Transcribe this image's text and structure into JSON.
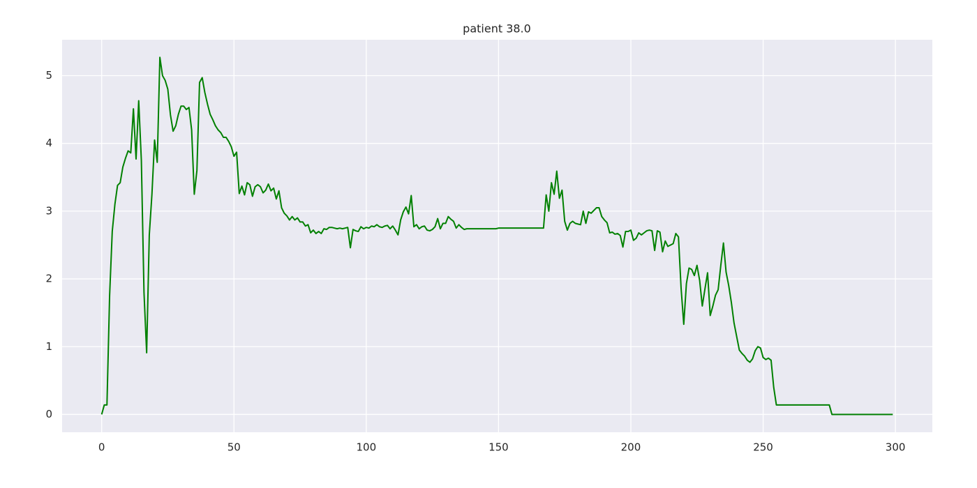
{
  "chart_data": {
    "type": "line",
    "title": "patient 38.0",
    "color": "#008000",
    "grid": true,
    "xlim": [
      -14.95,
      313.95
    ],
    "ylim": [
      -0.263,
      5.53
    ],
    "xticks": [
      0,
      50,
      100,
      150,
      200,
      250,
      300
    ],
    "yticks": [
      0,
      1,
      2,
      3,
      4,
      5
    ],
    "x": [
      0,
      1,
      2,
      3,
      4,
      5,
      6,
      7,
      8,
      9,
      10,
      11,
      12,
      13,
      14,
      15,
      16,
      17,
      18,
      19,
      20,
      21,
      22,
      23,
      24,
      25,
      26,
      27,
      28,
      29,
      30,
      31,
      32,
      33,
      34,
      35,
      36,
      37,
      38,
      39,
      40,
      41,
      42,
      43,
      44,
      45,
      46,
      47,
      48,
      49,
      50,
      51,
      52,
      53,
      54,
      55,
      56,
      57,
      58,
      59,
      60,
      61,
      62,
      63,
      64,
      65,
      66,
      67,
      68,
      69,
      70,
      71,
      72,
      73,
      74,
      75,
      76,
      77,
      78,
      79,
      80,
      81,
      82,
      83,
      84,
      85,
      86,
      87,
      88,
      89,
      90,
      91,
      92,
      93,
      94,
      95,
      96,
      97,
      98,
      99,
      100,
      101,
      102,
      103,
      104,
      105,
      106,
      107,
      108,
      109,
      110,
      111,
      112,
      113,
      114,
      115,
      116,
      117,
      118,
      119,
      120,
      121,
      122,
      123,
      124,
      125,
      126,
      127,
      128,
      129,
      130,
      131,
      132,
      133,
      134,
      135,
      136,
      137,
      138,
      139,
      140,
      141,
      142,
      143,
      144,
      145,
      146,
      147,
      148,
      149,
      150,
      151,
      152,
      153,
      154,
      155,
      156,
      157,
      158,
      159,
      160,
      161,
      162,
      163,
      164,
      165,
      166,
      167,
      168,
      169,
      170,
      171,
      172,
      173,
      174,
      175,
      176,
      177,
      178,
      179,
      180,
      181,
      182,
      183,
      184,
      185,
      186,
      187,
      188,
      189,
      190,
      191,
      192,
      193,
      194,
      195,
      196,
      197,
      198,
      199,
      200,
      201,
      202,
      203,
      204,
      205,
      206,
      207,
      208,
      209,
      210,
      211,
      212,
      213,
      214,
      215,
      216,
      217,
      218,
      219,
      220,
      221,
      222,
      223,
      224,
      225,
      226,
      227,
      228,
      229,
      230,
      231,
      232,
      233,
      234,
      235,
      236,
      237,
      238,
      239,
      240,
      241,
      242,
      243,
      244,
      245,
      246,
      247,
      248,
      249,
      250,
      251,
      252,
      253,
      254,
      255,
      256,
      257,
      258,
      259,
      260,
      261,
      262,
      263,
      264,
      265,
      266,
      267,
      268,
      269,
      270,
      271,
      272,
      273,
      274,
      275,
      276,
      277,
      278,
      279,
      280,
      281,
      282,
      283,
      284,
      285,
      286,
      287,
      288,
      289,
      290,
      291,
      292,
      293,
      294,
      295,
      296,
      297,
      298,
      299
    ],
    "values": [
      0,
      0.14,
      0.14,
      1.75,
      2.7,
      3.1,
      3.38,
      3.42,
      3.65,
      3.78,
      3.89,
      3.86,
      4.51,
      3.77,
      4.63,
      3.75,
      1.8,
      0.91,
      2.65,
      3.25,
      4.05,
      3.72,
      5.27,
      5.0,
      4.93,
      4.8,
      4.42,
      4.18,
      4.26,
      4.43,
      4.55,
      4.55,
      4.5,
      4.53,
      4.2,
      3.25,
      3.6,
      4.9,
      4.97,
      4.75,
      4.58,
      4.43,
      4.35,
      4.26,
      4.2,
      4.16,
      4.09,
      4.09,
      4.03,
      3.95,
      3.81,
      3.87,
      3.26,
      3.37,
      3.24,
      3.42,
      3.39,
      3.22,
      3.36,
      3.39,
      3.36,
      3.27,
      3.31,
      3.4,
      3.3,
      3.34,
      3.18,
      3.3,
      3.05,
      2.97,
      2.93,
      2.87,
      2.92,
      2.87,
      2.9,
      2.84,
      2.84,
      2.78,
      2.8,
      2.68,
      2.72,
      2.67,
      2.7,
      2.67,
      2.74,
      2.73,
      2.76,
      2.76,
      2.75,
      2.74,
      2.75,
      2.74,
      2.75,
      2.76,
      2.46,
      2.73,
      2.71,
      2.7,
      2.77,
      2.74,
      2.76,
      2.75,
      2.78,
      2.77,
      2.8,
      2.77,
      2.76,
      2.78,
      2.79,
      2.74,
      2.78,
      2.72,
      2.65,
      2.87,
      2.99,
      3.06,
      2.96,
      3.23,
      2.77,
      2.8,
      2.74,
      2.77,
      2.78,
      2.72,
      2.71,
      2.73,
      2.77,
      2.89,
      2.74,
      2.82,
      2.82,
      2.92,
      2.88,
      2.85,
      2.75,
      2.8,
      2.76,
      2.73,
      2.74,
      2.74,
      2.74,
      2.74,
      2.74,
      2.74,
      2.74,
      2.74,
      2.74,
      2.74,
      2.74,
      2.74,
      2.75,
      2.75,
      2.75,
      2.75,
      2.75,
      2.75,
      2.75,
      2.75,
      2.75,
      2.75,
      2.75,
      2.75,
      2.75,
      2.75,
      2.75,
      2.75,
      2.75,
      2.75,
      3.24,
      3.0,
      3.42,
      3.25,
      3.59,
      3.19,
      3.31,
      2.85,
      2.72,
      2.82,
      2.85,
      2.82,
      2.81,
      2.8,
      3.0,
      2.82,
      2.99,
      2.97,
      3.01,
      3.05,
      3.05,
      2.92,
      2.87,
      2.83,
      2.68,
      2.69,
      2.66,
      2.67,
      2.64,
      2.47,
      2.7,
      2.7,
      2.72,
      2.57,
      2.6,
      2.68,
      2.65,
      2.68,
      2.71,
      2.72,
      2.71,
      2.42,
      2.71,
      2.69,
      2.4,
      2.56,
      2.48,
      2.5,
      2.52,
      2.67,
      2.62,
      1.86,
      1.33,
      1.93,
      2.16,
      2.14,
      2.05,
      2.2,
      1.98,
      1.6,
      1.85,
      2.09,
      1.46,
      1.6,
      1.76,
      1.84,
      2.2,
      2.53,
      2.1,
      1.9,
      1.65,
      1.35,
      1.15,
      0.95,
      0.9,
      0.86,
      0.8,
      0.77,
      0.82,
      0.94,
      1.0,
      0.98,
      0.84,
      0.81,
      0.83,
      0.8,
      0.4,
      0.14,
      0.14,
      0.14,
      0.14,
      0.14,
      0.14,
      0.14,
      0.14,
      0.14,
      0.14,
      0.14,
      0.14,
      0.14,
      0.14,
      0.14,
      0.14,
      0.14,
      0.14,
      0.14,
      0.14,
      0.14,
      0,
      0,
      0,
      0,
      0,
      0,
      0,
      0,
      0,
      0,
      0,
      0,
      0,
      0,
      0,
      0,
      0,
      0,
      0,
      0,
      0,
      0,
      0,
      0
    ]
  }
}
